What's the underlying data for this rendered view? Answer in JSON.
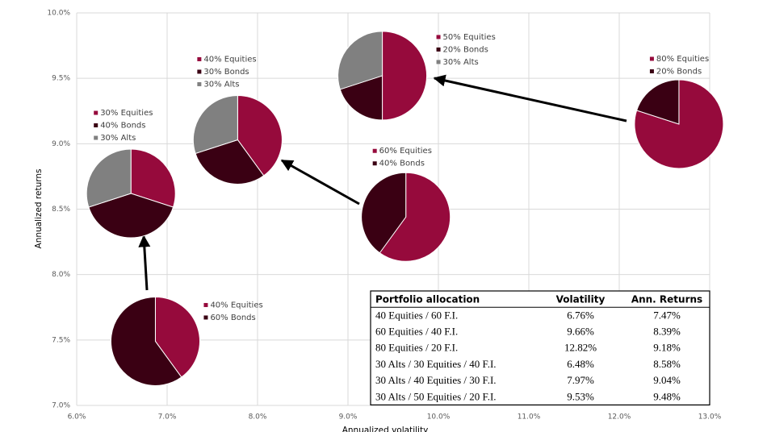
{
  "chart_data": {
    "type": "pie-scatter",
    "xlabel": "Annualized volatility",
    "ylabel": "Annualized returns",
    "xlim": [
      6,
      13
    ],
    "ylim": [
      7,
      10
    ],
    "xticks": [
      {
        "value": 6,
        "label": "6.0%"
      },
      {
        "value": 7,
        "label": "7.0%"
      },
      {
        "value": 8,
        "label": "8.0%"
      },
      {
        "value": 9,
        "label": "9.0%"
      },
      {
        "value": 10,
        "label": "10.0%"
      },
      {
        "value": 11,
        "label": "11.0%"
      },
      {
        "value": 12,
        "label": "12.0%"
      },
      {
        "value": 13,
        "label": "13.0%"
      }
    ],
    "yticks": [
      {
        "value": 7,
        "label": "7.0%"
      },
      {
        "value": 7.5,
        "label": "7.5%"
      },
      {
        "value": 8,
        "label": "8.0%"
      },
      {
        "value": 8.5,
        "label": "8.5%"
      },
      {
        "value": 9,
        "label": "9.0%"
      },
      {
        "value": 9.5,
        "label": "9.5%"
      },
      {
        "value": 10,
        "label": "10.0%"
      }
    ],
    "grid": true,
    "pies": [
      {
        "x": 6.87,
        "y": 7.49,
        "values": [
          40,
          60
        ],
        "value_labels": [
          "40% Equities",
          "60% Bonds"
        ],
        "colors": [
          "#960a3c",
          "#3a0013"
        ]
      },
      {
        "x": 9.64,
        "y": 8.44,
        "values": [
          60,
          40
        ],
        "value_labels": [
          "60% Equities",
          "40% Bonds"
        ],
        "colors": [
          "#960a3c",
          "#3a0013"
        ]
      },
      {
        "x": 12.66,
        "y": 9.15,
        "values": [
          80,
          20
        ],
        "value_labels": [
          "80% Equities",
          "20% Bonds"
        ],
        "colors": [
          "#960a3c",
          "#3a0013"
        ]
      },
      {
        "x": 6.6,
        "y": 8.62,
        "values": [
          30,
          40,
          30
        ],
        "value_labels": [
          "30% Equities",
          "40% Bonds",
          "30% Alts"
        ],
        "colors": [
          "#960a3c",
          "#3a0013",
          "#808080"
        ]
      },
      {
        "x": 7.78,
        "y": 9.03,
        "values": [
          40,
          30,
          30
        ],
        "value_labels": [
          "40% Equities",
          "30% Bonds",
          "30% Alts"
        ],
        "colors": [
          "#960a3c",
          "#3a0013",
          "#808080"
        ]
      },
      {
        "x": 9.38,
        "y": 9.52,
        "values": [
          50,
          20,
          30
        ],
        "value_labels": [
          "50% Equities",
          "20% Bonds",
          "30% Alts"
        ],
        "colors": [
          "#960a3c",
          "#3a0013",
          "#808080"
        ]
      }
    ],
    "table": {
      "columns": [
        "Portfolio allocation",
        "Volatility",
        "Ann. Returns"
      ],
      "rows": [
        [
          "40 Equities / 60 F.I.",
          "6.76%",
          "7.47%"
        ],
        [
          "60 Equities / 40 F.I.",
          "9.66%",
          "8.39%"
        ],
        [
          "80 Equities / 20 F.I.",
          "12.82%",
          "9.18%"
        ],
        [
          "30 Alts / 30 Equities / 40 F.I.",
          "6.48%",
          "8.58%"
        ],
        [
          "30 Alts / 40 Equities / 30 F.I.",
          "7.97%",
          "9.04%"
        ],
        [
          "30 Alts / 50 Equities / 20 F.I.",
          "9.53%",
          "9.48%"
        ]
      ]
    }
  }
}
